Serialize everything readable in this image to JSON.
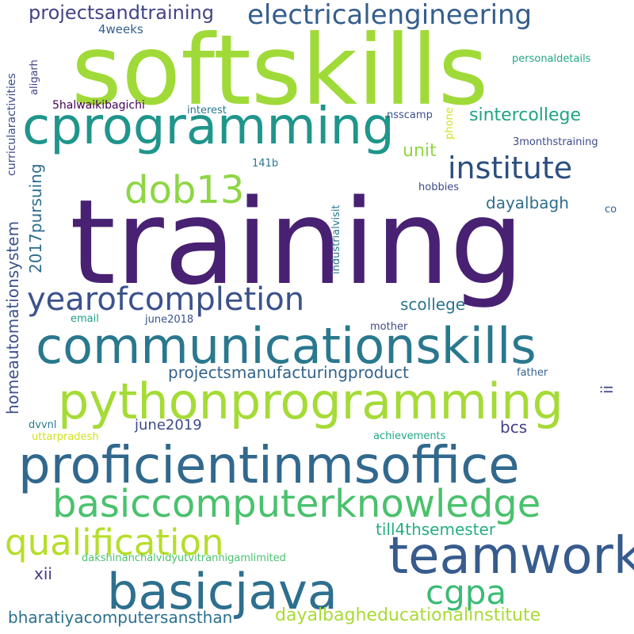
{
  "title": "Resume keyword word cloud",
  "colors": {
    "background": "#ffffff"
  },
  "words": {
    "training": "training",
    "softskills": "softskills",
    "cprogramming": "cprogramming",
    "communicationskills": "communicationskills",
    "pythonprogramming": "pythonprogramming",
    "proficientinmsoffice": "proficientinmsoffice",
    "basiccomputerknowledge": "basiccomputerknowledge",
    "basicjava": "basicjava",
    "teamwork": "teamwork",
    "institute": "institute",
    "dob13": "dob13",
    "yearofcompletion": "yearofcompletion",
    "qualification": "qualification",
    "electricalengineering": "electricalengineering",
    "projectsandtraining": "projectsandtraining",
    "cgpa": "cgpa",
    "dayalbagheducationalinstitute": "dayalbagheducationalinstitute",
    "bharatiyacomputersansthan": "bharatiyacomputersansthan",
    "sintercollege": "sintercollege",
    "scollege": "scollege",
    "dayalbagh": "dayalbagh",
    "unit": "unit",
    "projectsmanufacturingproduct": "projectsmanufacturingproduct",
    "june2019": "june2019",
    "till4thsemester": "till4thsemester",
    "xii": "xii",
    "bcs": "bcs",
    "week4": "4weeks",
    "dakshinanchalvidyutvitrannigamlimited": "dakshinanchalvidyutvitrannigamlimited",
    "uttarpradesh": "uttarpradesh",
    "achievements": "achievements",
    "dvvnl": "dvvnl",
    "email": "email",
    "june2018": "june2018",
    "mother": "mother",
    "father": "father",
    "interest": "interest",
    "nsscamp": "nsscamp",
    "threemonthstraining": "3monthstraining",
    "hobbies": "hobbies",
    "co": "co",
    "onefortyoneb": "141b",
    "personaldetails": "personaldetails",
    "fivehalwaikibagichi": "5halwaikibagichi",
    "homeautomationsystem": "homeautomationsystem",
    "pursuing2017": "2017pursuing",
    "curricularactivities": "curricularactivities",
    "aligarh": "aligarh",
    "industrialvisit": "industrialvisit",
    "phone": "phone",
    "ii": "ii"
  }
}
